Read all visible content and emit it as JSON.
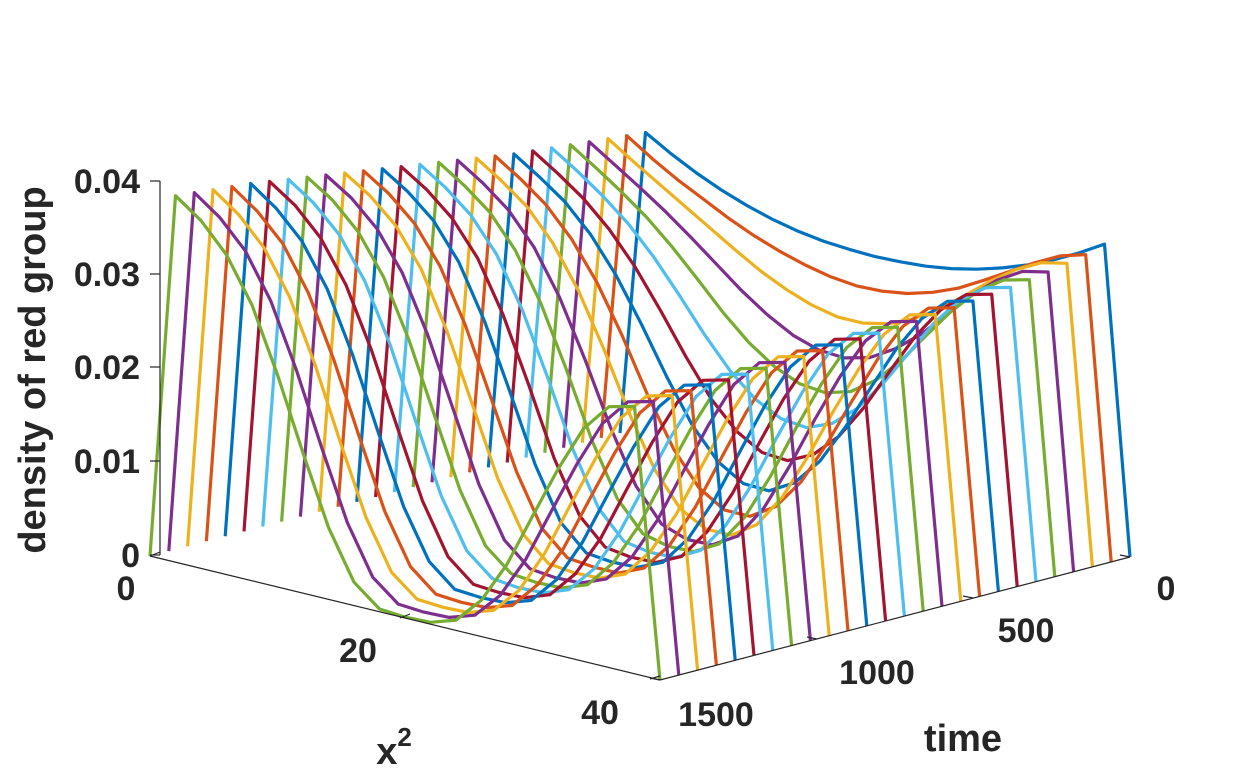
{
  "chart_data": {
    "type": "line",
    "title": "",
    "view": "3d-waterfall",
    "xlabel": "x",
    "xlabel_superscript": "2",
    "ylabel": "time",
    "zlabel": "density of red group",
    "x_range": [
      0,
      40
    ],
    "time_range": [
      0,
      1500
    ],
    "z_range": [
      0,
      0.04
    ],
    "x_ticks": [
      "0",
      "20",
      "40"
    ],
    "time_ticks": [
      "0",
      "500",
      "1000",
      "1500"
    ],
    "z_ticks": [
      "0",
      "0.01",
      "0.02",
      "0.03",
      "0.04"
    ],
    "grid": false,
    "legend": "none",
    "colors": [
      "#0072BD",
      "#D95319",
      "#EDB120",
      "#7E2F8E",
      "#77AC30",
      "#4DBEEE",
      "#A2142F"
    ],
    "times": [
      0,
      60,
      120,
      180,
      240,
      300,
      360,
      420,
      480,
      540,
      600,
      660,
      720,
      780,
      840,
      900,
      960,
      1020,
      1080,
      1140,
      1200,
      1260,
      1320,
      1380,
      1440,
      1500
    ],
    "x": [
      0,
      2,
      4,
      6,
      8,
      10,
      12,
      14,
      16,
      18,
      20,
      22,
      24,
      26,
      28,
      30,
      32,
      34,
      36,
      38,
      40
    ],
    "series": [
      {
        "time": 0,
        "values": [
          0,
          0.0328,
          0.0312,
          0.0298,
          0.0286,
          0.0276,
          0.0268,
          0.0262,
          0.0258,
          0.0256,
          0.0255,
          0.0256,
          0.0258,
          0.0262,
          0.0268,
          0.0276,
          0.0286,
          0.0298,
          0.0312,
          0.0328,
          0
        ]
      },
      {
        "time": 60,
        "values": [
          0,
          0.033,
          0.0312,
          0.0296,
          0.0282,
          0.0268,
          0.0256,
          0.0246,
          0.0238,
          0.0232,
          0.0229,
          0.023,
          0.0234,
          0.0242,
          0.0253,
          0.0268,
          0.0284,
          0.03,
          0.0314,
          0.0322,
          0
        ]
      },
      {
        "time": 120,
        "values": [
          0,
          0.0332,
          0.0314,
          0.0297,
          0.028,
          0.0263,
          0.0246,
          0.023,
          0.0217,
          0.0207,
          0.0201,
          0.0201,
          0.0207,
          0.0219,
          0.0236,
          0.0257,
          0.0279,
          0.0298,
          0.0312,
          0.0318,
          0
        ]
      },
      {
        "time": 180,
        "values": [
          0,
          0.0334,
          0.0316,
          0.0298,
          0.0279,
          0.0258,
          0.0236,
          0.0214,
          0.0195,
          0.018,
          0.0171,
          0.0169,
          0.0176,
          0.0192,
          0.0214,
          0.0241,
          0.0269,
          0.0292,
          0.0308,
          0.0314,
          0
        ]
      },
      {
        "time": 240,
        "values": [
          0,
          0.0336,
          0.0318,
          0.0299,
          0.0278,
          0.0253,
          0.0225,
          0.0196,
          0.0171,
          0.0152,
          0.014,
          0.0137,
          0.0145,
          0.0164,
          0.0192,
          0.0226,
          0.0259,
          0.0286,
          0.0304,
          0.0311,
          0
        ]
      },
      {
        "time": 300,
        "values": [
          0,
          0.0338,
          0.032,
          0.03,
          0.0277,
          0.0248,
          0.0214,
          0.0178,
          0.0146,
          0.0122,
          0.0108,
          0.0105,
          0.0116,
          0.0139,
          0.0172,
          0.0211,
          0.025,
          0.0281,
          0.0301,
          0.0308,
          0
        ]
      },
      {
        "time": 360,
        "values": [
          0,
          0.034,
          0.0322,
          0.0302,
          0.0276,
          0.0243,
          0.0203,
          0.016,
          0.0121,
          0.0093,
          0.0077,
          0.0075,
          0.0088,
          0.0114,
          0.0152,
          0.0197,
          0.0241,
          0.0276,
          0.0299,
          0.0306,
          0
        ]
      },
      {
        "time": 420,
        "values": [
          0,
          0.0342,
          0.0324,
          0.0304,
          0.0276,
          0.0239,
          0.0193,
          0.0143,
          0.0098,
          0.0066,
          0.0049,
          0.0048,
          0.0063,
          0.0093,
          0.0136,
          0.0185,
          0.0233,
          0.0272,
          0.0297,
          0.0304,
          0
        ]
      },
      {
        "time": 480,
        "values": [
          0,
          0.0345,
          0.0327,
          0.0306,
          0.0276,
          0.0236,
          0.0185,
          0.0128,
          0.0078,
          0.0043,
          0.0026,
          0.0026,
          0.0043,
          0.0076,
          0.0123,
          0.0176,
          0.0227,
          0.0269,
          0.0295,
          0.0302,
          0
        ]
      },
      {
        "time": 540,
        "values": [
          0,
          0.0348,
          0.033,
          0.0309,
          0.0277,
          0.0233,
          0.0177,
          0.0115,
          0.0061,
          0.0026,
          0.0011,
          0.0011,
          0.0029,
          0.0065,
          0.0115,
          0.017,
          0.0222,
          0.0266,
          0.0293,
          0.03,
          0
        ]
      },
      {
        "time": 600,
        "values": [
          0,
          0.0351,
          0.0333,
          0.0311,
          0.0278,
          0.0231,
          0.0171,
          0.0105,
          0.0049,
          0.0015,
          0.0005,
          0.0006,
          0.0022,
          0.0058,
          0.0109,
          0.0166,
          0.0219,
          0.0264,
          0.0291,
          0.0298,
          0
        ]
      },
      {
        "time": 660,
        "values": [
          0,
          0.0354,
          0.0336,
          0.0314,
          0.028,
          0.023,
          0.0166,
          0.0097,
          0.0041,
          0.001,
          0.0003,
          0.0004,
          0.0019,
          0.0054,
          0.0104,
          0.0162,
          0.0216,
          0.0262,
          0.029,
          0.0297,
          0
        ]
      },
      {
        "time": 720,
        "values": [
          0,
          0.0357,
          0.0339,
          0.0316,
          0.0281,
          0.0229,
          0.0163,
          0.0092,
          0.0036,
          0.0007,
          0.0002,
          0.0003,
          0.0017,
          0.0051,
          0.01,
          0.0158,
          0.0213,
          0.026,
          0.0289,
          0.0296,
          0
        ]
      },
      {
        "time": 780,
        "values": [
          0,
          0.036,
          0.0342,
          0.0318,
          0.0282,
          0.0228,
          0.016,
          0.0088,
          0.0033,
          0.0006,
          0.0002,
          0.0003,
          0.0016,
          0.0049,
          0.0097,
          0.0155,
          0.0211,
          0.0258,
          0.0288,
          0.0295,
          0
        ]
      },
      {
        "time": 840,
        "values": [
          0,
          0.0363,
          0.0345,
          0.0321,
          0.0283,
          0.0227,
          0.0158,
          0.0086,
          0.0031,
          0.0005,
          0.0002,
          0.0003,
          0.0015,
          0.0047,
          0.0094,
          0.0152,
          0.0209,
          0.0257,
          0.0287,
          0.0294,
          0
        ]
      },
      {
        "time": 900,
        "values": [
          0,
          0.0366,
          0.0348,
          0.0323,
          0.0284,
          0.0227,
          0.0156,
          0.0084,
          0.003,
          0.0005,
          0.0002,
          0.0002,
          0.0014,
          0.0045,
          0.0092,
          0.015,
          0.0207,
          0.0256,
          0.0286,
          0.0293,
          0
        ]
      },
      {
        "time": 960,
        "values": [
          0,
          0.0369,
          0.0351,
          0.0326,
          0.0286,
          0.0227,
          0.0155,
          0.0082,
          0.0029,
          0.0004,
          0.0001,
          0.0002,
          0.0013,
          0.0044,
          0.009,
          0.0148,
          0.0205,
          0.0255,
          0.0285,
          0.0292,
          0
        ]
      },
      {
        "time": 1020,
        "values": [
          0,
          0.0372,
          0.0354,
          0.0328,
          0.0287,
          0.0227,
          0.0154,
          0.0081,
          0.0028,
          0.0004,
          0.0001,
          0.0002,
          0.0013,
          0.0043,
          0.0089,
          0.0147,
          0.0204,
          0.0254,
          0.0284,
          0.0291,
          0
        ]
      },
      {
        "time": 1080,
        "values": [
          0,
          0.0375,
          0.0357,
          0.033,
          0.0288,
          0.0227,
          0.0153,
          0.008,
          0.0027,
          0.0004,
          0.0001,
          0.0002,
          0.0012,
          0.0042,
          0.0088,
          0.0146,
          0.0203,
          0.0253,
          0.0283,
          0.029,
          0
        ]
      },
      {
        "time": 1140,
        "values": [
          0,
          0.0378,
          0.0359,
          0.0332,
          0.0289,
          0.0227,
          0.0152,
          0.0079,
          0.0027,
          0.0004,
          0.0001,
          0.0002,
          0.0012,
          0.0041,
          0.0087,
          0.0145,
          0.0202,
          0.0252,
          0.0282,
          0.0289,
          0
        ]
      },
      {
        "time": 1200,
        "values": [
          0,
          0.0381,
          0.0362,
          0.0334,
          0.029,
          0.0227,
          0.0152,
          0.0079,
          0.0026,
          0.0003,
          0.0001,
          0.0002,
          0.0012,
          0.0041,
          0.0086,
          0.0144,
          0.0201,
          0.0251,
          0.0281,
          0.0288,
          0
        ]
      },
      {
        "time": 1260,
        "values": [
          0,
          0.0384,
          0.0364,
          0.0336,
          0.0291,
          0.0227,
          0.0151,
          0.0078,
          0.0026,
          0.0003,
          0.0001,
          0.0002,
          0.0011,
          0.004,
          0.0086,
          0.0144,
          0.0201,
          0.0251,
          0.0281,
          0.0288,
          0
        ]
      },
      {
        "time": 1320,
        "values": [
          0,
          0.0386,
          0.0366,
          0.0338,
          0.0292,
          0.0227,
          0.0151,
          0.0078,
          0.0026,
          0.0003,
          0.0001,
          0.0002,
          0.0011,
          0.004,
          0.0085,
          0.0143,
          0.02,
          0.025,
          0.028,
          0.0287,
          0
        ]
      },
      {
        "time": 1380,
        "values": [
          0,
          0.0388,
          0.0368,
          0.0339,
          0.0293,
          0.0227,
          0.015,
          0.0077,
          0.0025,
          0.0003,
          0.0001,
          0.0002,
          0.0011,
          0.0039,
          0.0085,
          0.0143,
          0.02,
          0.025,
          0.028,
          0.0287,
          0
        ]
      },
      {
        "time": 1440,
        "values": [
          0,
          0.039,
          0.037,
          0.0341,
          0.0294,
          0.0227,
          0.015,
          0.0077,
          0.0025,
          0.0003,
          0.0001,
          0.0002,
          0.0011,
          0.0039,
          0.0084,
          0.0142,
          0.0199,
          0.0249,
          0.0279,
          0.0286,
          0
        ]
      },
      {
        "time": 1500,
        "values": [
          0,
          0.0392,
          0.0372,
          0.0342,
          0.0295,
          0.0227,
          0.015,
          0.0077,
          0.0025,
          0.0003,
          0.0001,
          0.0002,
          0.0011,
          0.0039,
          0.0084,
          0.0142,
          0.0199,
          0.0249,
          0.0279,
          0.0286,
          0
        ]
      }
    ]
  }
}
